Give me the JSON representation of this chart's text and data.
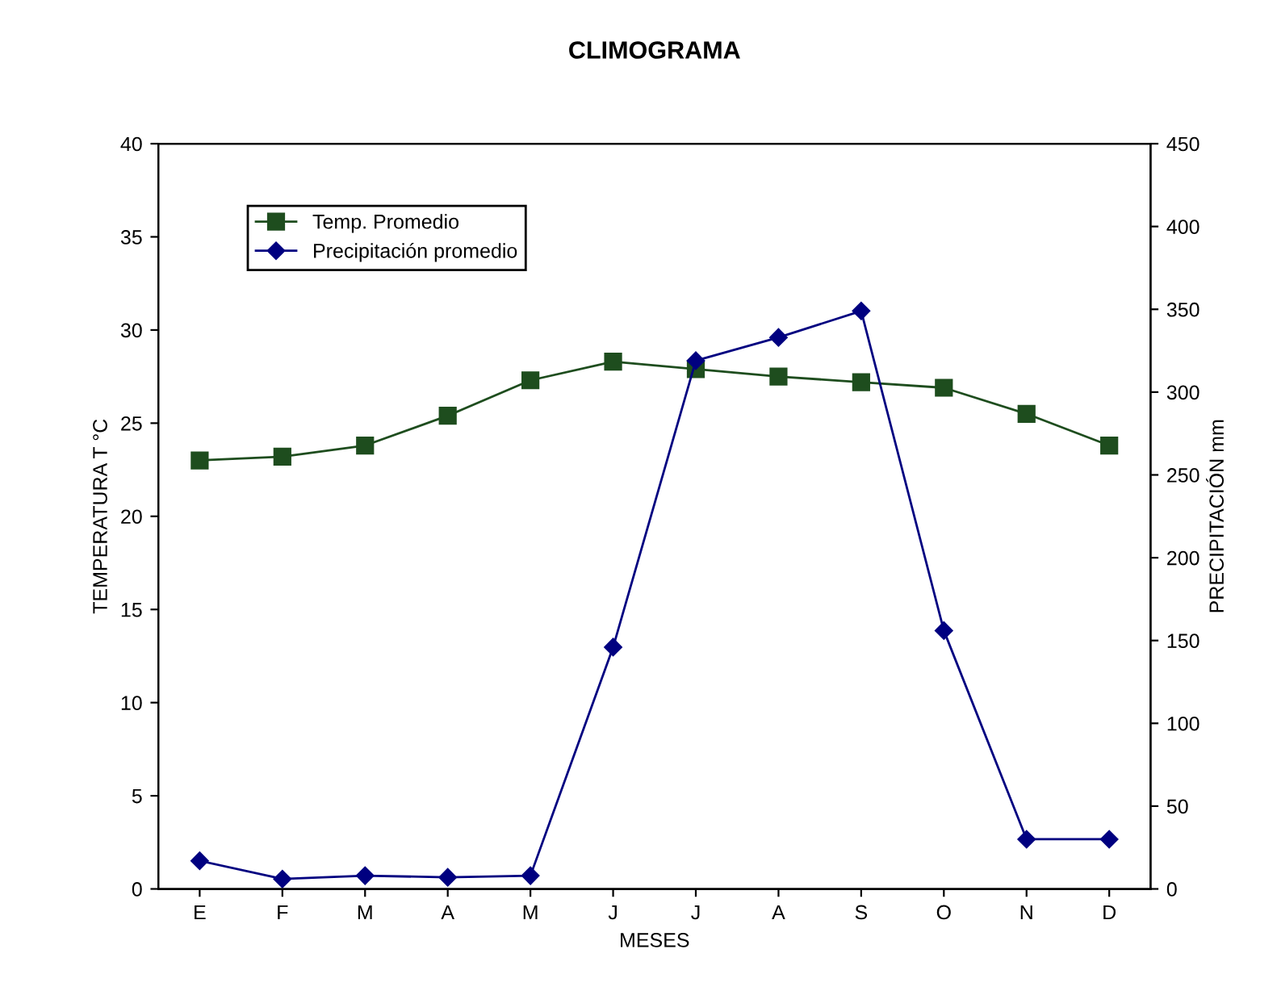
{
  "chart_data": {
    "type": "line",
    "title": "CLIMOGRAMA",
    "xlabel": "MESES",
    "ylabel": "TEMPERATURA T °C",
    "y2label": "PRECIPITACIÓN mm",
    "categories": [
      "E",
      "F",
      "M",
      "A",
      "M",
      "J",
      "J",
      "A",
      "S",
      "O",
      "N",
      "D"
    ],
    "series": [
      {
        "name": "Temp. Promedio",
        "color": "#1e4d1e",
        "marker": "square",
        "values": [
          23.0,
          23.2,
          23.8,
          25.4,
          27.3,
          28.3,
          27.9,
          27.5,
          27.2,
          26.9,
          25.5,
          23.8
        ]
      },
      {
        "name": "Precipitación promedio",
        "color": "#000080",
        "marker": "diamond",
        "axis": "y2",
        "values": [
          17,
          6,
          8,
          7,
          8,
          146,
          319,
          333,
          349,
          156,
          30,
          30
        ]
      }
    ],
    "ylim": [
      0,
      40
    ],
    "yticks": [
      0,
      5,
      10,
      15,
      20,
      25,
      30,
      35,
      40
    ],
    "y2lim": [
      0,
      450
    ],
    "y2ticks": [
      0,
      50,
      100,
      150,
      200,
      250,
      300,
      350,
      400,
      450
    ],
    "grid": false,
    "legend": "top left",
    "line_style": "solid"
  }
}
